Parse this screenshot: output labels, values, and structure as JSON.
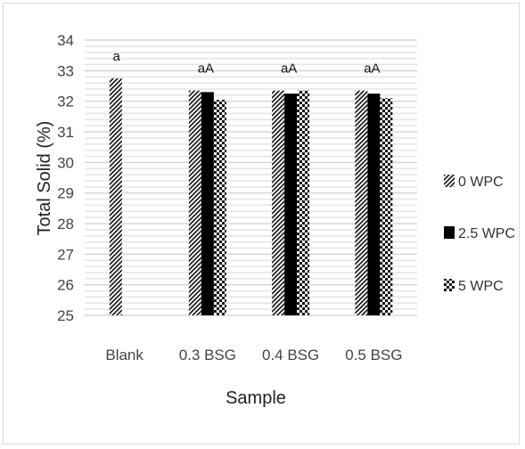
{
  "chart_data": {
    "type": "bar",
    "title": "",
    "xlabel": "Sample",
    "ylabel": "Total Solid (%)",
    "ylim": [
      25,
      34
    ],
    "yticks": [
      25,
      26,
      27,
      28,
      29,
      30,
      31,
      32,
      33,
      34
    ],
    "categories": [
      "Blank",
      "0.3 BSG",
      "0.4 BSG",
      "0.5 BSG"
    ],
    "series": [
      {
        "name": "0 WPC",
        "values": [
          32.75,
          32.35,
          32.35,
          32.35
        ],
        "pattern": "diagonal"
      },
      {
        "name": "2.5 WPC",
        "values": [
          null,
          32.3,
          32.25,
          32.25
        ],
        "pattern": "solid"
      },
      {
        "name": "5 WPC",
        "values": [
          null,
          32.05,
          32.35,
          32.1
        ],
        "pattern": "checker"
      }
    ],
    "annotations": [
      "a",
      "aA",
      "aA",
      "aA"
    ],
    "legend_position": "right",
    "grid": true
  }
}
